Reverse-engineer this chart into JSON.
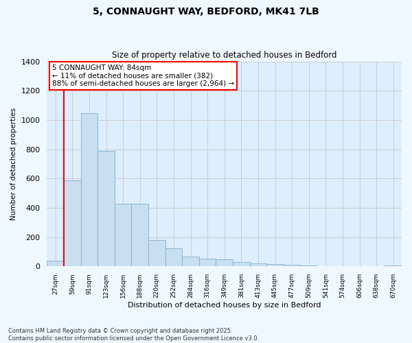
{
  "title": "5, CONNAUGHT WAY, BEDFORD, MK41 7LB",
  "subtitle": "Size of property relative to detached houses in Bedford",
  "xlabel": "Distribution of detached houses by size in Bedford",
  "ylabel": "Number of detached properties",
  "categories": [
    "27sqm",
    "59sqm",
    "91sqm",
    "123sqm",
    "156sqm",
    "188sqm",
    "220sqm",
    "252sqm",
    "284sqm",
    "316sqm",
    "349sqm",
    "381sqm",
    "413sqm",
    "445sqm",
    "477sqm",
    "509sqm",
    "541sqm",
    "574sqm",
    "606sqm",
    "638sqm",
    "670sqm"
  ],
  "values": [
    40,
    585,
    1045,
    790,
    430,
    430,
    182,
    125,
    68,
    55,
    47,
    28,
    20,
    15,
    10,
    5,
    3,
    2,
    1,
    0,
    8
  ],
  "bar_color": "#c8dff0",
  "bar_edge_color": "#7bafd4",
  "grid_color": "#cccccc",
  "plot_bg_color": "#ddeeff",
  "fig_bg_color": "#f0f8ff",
  "red_line_x": 0.5,
  "annotation_title": "5 CONNAUGHT WAY: 84sqm",
  "annotation_line1": "← 11% of detached houses are smaller (382)",
  "annotation_line2": "88% of semi-detached houses are larger (2,964) →",
  "ylim_max": 1400,
  "yticks": [
    0,
    200,
    400,
    600,
    800,
    1000,
    1200,
    1400
  ],
  "footer1": "Contains HM Land Registry data © Crown copyright and database right 2025.",
  "footer2": "Contains public sector information licensed under the Open Government Licence v3.0."
}
